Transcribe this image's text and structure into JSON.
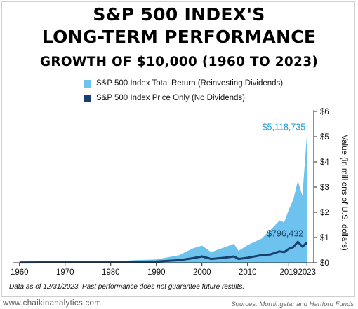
{
  "footer": {
    "site": "www.chaikinanalytics.com",
    "sources": "Sources: Morningstar and Hartford Funds"
  },
  "note": "Data as of 12/31/2023. Past performance does not guarantee future results.",
  "chart_data": {
    "type": "area",
    "title": "S&P 500 INDEX'S",
    "title_line2": "LONG-TERM PERFORMANCE",
    "subtitle": "GROWTH OF $10,000 (1960 TO 2023)",
    "xlabel": "",
    "ylabel": "Value (in millions of U.S. dollars)",
    "x_ticks": [
      "1960",
      "1970",
      "1980",
      "1990",
      "2000",
      "2010",
      "2019",
      "2023"
    ],
    "x_tick_values": [
      1960,
      1970,
      1980,
      1990,
      2000,
      2010,
      2019,
      2023
    ],
    "y_ticks": [
      "$0",
      "$1",
      "$2",
      "$3",
      "$4",
      "$5",
      "$6"
    ],
    "ylim": [
      0,
      6
    ],
    "xlim": [
      1958.5,
      2024.5
    ],
    "y_axis_side": "right",
    "grid": false,
    "legend_position": "top",
    "series": [
      {
        "name": "S&P 500 Index Total Return (Reinvesting Dividends)",
        "kind": "area",
        "color": "#6ec3ee",
        "end_label": "$5,118,735",
        "end_label_color": "#1a9bd7",
        "x": [
          1960,
          1965,
          1970,
          1975,
          1980,
          1985,
          1990,
          1995,
          1998,
          2000,
          2002,
          2005,
          2007,
          2008,
          2010,
          2013,
          2015,
          2017,
          2018,
          2019,
          2020,
          2021,
          2022,
          2023
        ],
        "y": [
          0.01,
          0.02,
          0.025,
          0.03,
          0.05,
          0.1,
          0.13,
          0.3,
          0.57,
          0.68,
          0.42,
          0.62,
          0.75,
          0.47,
          0.7,
          0.95,
          1.3,
          1.68,
          1.6,
          2.1,
          2.5,
          3.25,
          2.65,
          5.119
        ]
      },
      {
        "name": "S&P 500 Index Price Only (No Dividends)",
        "kind": "line",
        "color": "#17406d",
        "end_label": "$796,432",
        "end_label_color": "#1d3f66",
        "x": [
          1960,
          1965,
          1970,
          1975,
          1980,
          1985,
          1990,
          1995,
          1998,
          2000,
          2002,
          2005,
          2007,
          2008,
          2010,
          2013,
          2015,
          2017,
          2018,
          2019,
          2020,
          2021,
          2022,
          2023
        ],
        "y": [
          0.01,
          0.015,
          0.015,
          0.016,
          0.02,
          0.03,
          0.05,
          0.1,
          0.18,
          0.25,
          0.15,
          0.2,
          0.25,
          0.15,
          0.2,
          0.3,
          0.33,
          0.45,
          0.42,
          0.55,
          0.62,
          0.83,
          0.64,
          0.796
        ]
      }
    ]
  }
}
